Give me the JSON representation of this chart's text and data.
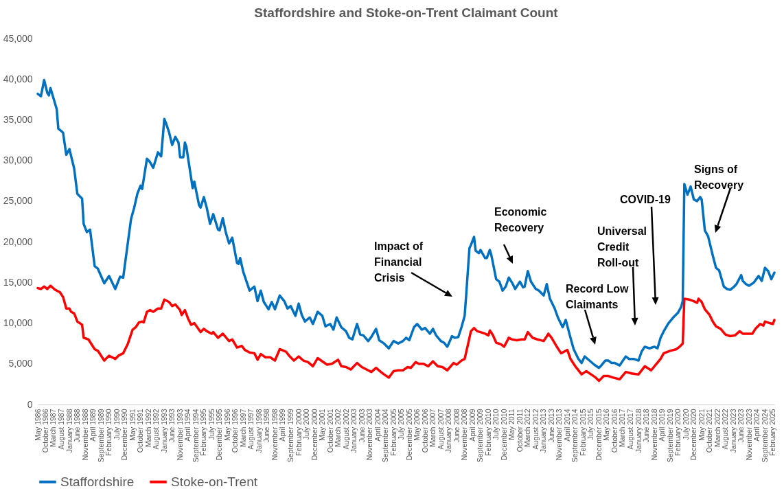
{
  "chart_data": {
    "type": "line",
    "title": "Staffordshire and Stoke-on-Trent Claimant Count",
    "legend": "bottom",
    "ylim": [
      0,
      45000
    ],
    "yticks": [
      0,
      {
        "value": 5000,
        "label": "5,000"
      },
      {
        "value": 10000,
        "label": "10,000"
      },
      {
        "value": 15000,
        "label": "15,000"
      },
      {
        "value": 20000,
        "label": "20,000"
      },
      {
        "value": 25000,
        "label": "25,000"
      },
      {
        "value": 30000,
        "label": "30,000"
      },
      {
        "value": 35000,
        "label": "35,000"
      },
      {
        "value": 40000,
        "label": "40,000"
      },
      {
        "value": 45000,
        "label": "45,000"
      }
    ],
    "xlim": [
      "1986-05",
      "2025-03"
    ],
    "xticks": [
      {
        "value": "1986-05",
        "label": "May 1986"
      },
      {
        "value": "1986-10",
        "label": "October 1986"
      },
      {
        "value": "1987-03",
        "label": "March 1987"
      },
      {
        "value": "1987-08",
        "label": "August 1987"
      },
      {
        "value": "1988-01",
        "label": "January 1988"
      },
      {
        "value": "1988-06",
        "label": "June 1988"
      },
      {
        "value": "1988-11",
        "label": "November 1988"
      },
      {
        "value": "1989-04",
        "label": "April 1989"
      },
      {
        "value": "1989-09",
        "label": "September 1989"
      },
      {
        "value": "1990-02",
        "label": "February 1990"
      },
      {
        "value": "1990-07",
        "label": "July 1990"
      },
      {
        "value": "1990-12",
        "label": "December 1990"
      },
      {
        "value": "1991-05",
        "label": "May 1991"
      },
      {
        "value": "1991-10",
        "label": "October 1991"
      },
      {
        "value": "1992-03",
        "label": "March 1992"
      },
      {
        "value": "1992-08",
        "label": "August 1992"
      },
      {
        "value": "1993-01",
        "label": "January 1993"
      },
      {
        "value": "1993-06",
        "label": "June 1993"
      },
      {
        "value": "1993-11",
        "label": "November 1993"
      },
      {
        "value": "1994-04",
        "label": "April 1994"
      },
      {
        "value": "1994-09",
        "label": "September 1994"
      },
      {
        "value": "1995-02",
        "label": "February 1995"
      },
      {
        "value": "1995-07",
        "label": "July 1995"
      },
      {
        "value": "1995-12",
        "label": "December 1995"
      },
      {
        "value": "1996-05",
        "label": "May 1996"
      },
      {
        "value": "1996-10",
        "label": "October 1996"
      },
      {
        "value": "1997-03",
        "label": "March 1997"
      },
      {
        "value": "1997-08",
        "label": "August 1997"
      },
      {
        "value": "1998-01",
        "label": "January 1998"
      },
      {
        "value": "1998-06",
        "label": "June 1998"
      },
      {
        "value": "1998-11",
        "label": "November 1998"
      },
      {
        "value": "1999-04",
        "label": "April 1999"
      },
      {
        "value": "1999-09",
        "label": "September 1999"
      },
      {
        "value": "2000-02",
        "label": "February 2000"
      },
      {
        "value": "2000-07",
        "label": "July 2000"
      },
      {
        "value": "2000-12",
        "label": "December 2000"
      },
      {
        "value": "2001-05",
        "label": "May 2001"
      },
      {
        "value": "2001-10",
        "label": "October 2001"
      },
      {
        "value": "2002-03",
        "label": "March 2002"
      },
      {
        "value": "2002-08",
        "label": "August 2002"
      },
      {
        "value": "2003-01",
        "label": "January 2003"
      },
      {
        "value": "2003-06",
        "label": "June 2003"
      },
      {
        "value": "2003-11",
        "label": "November 2003"
      },
      {
        "value": "2004-04",
        "label": "April 2004"
      },
      {
        "value": "2004-09",
        "label": "September 2004"
      },
      {
        "value": "2005-02",
        "label": "February 2005"
      },
      {
        "value": "2005-07",
        "label": "July 2005"
      },
      {
        "value": "2005-12",
        "label": "December 2005"
      },
      {
        "value": "2006-05",
        "label": "May 2006"
      },
      {
        "value": "2006-10",
        "label": "October 2006"
      },
      {
        "value": "2007-03",
        "label": "March 2007"
      },
      {
        "value": "2007-08",
        "label": "August 2007"
      },
      {
        "value": "2008-01",
        "label": "January 2008"
      },
      {
        "value": "2008-06",
        "label": "June 2008"
      },
      {
        "value": "2008-11",
        "label": "November 2008"
      },
      {
        "value": "2009-04",
        "label": "April 2009"
      },
      {
        "value": "2009-09",
        "label": "September 2009"
      },
      {
        "value": "2010-02",
        "label": "February 2010"
      },
      {
        "value": "2010-07",
        "label": "July 2010"
      },
      {
        "value": "2010-12",
        "label": "December 2010"
      },
      {
        "value": "2011-05",
        "label": "May 2011"
      },
      {
        "value": "2011-10",
        "label": "October 2011"
      },
      {
        "value": "2012-03",
        "label": "March 2012"
      },
      {
        "value": "2012-08",
        "label": "August 2012"
      },
      {
        "value": "2013-01",
        "label": "January 2013"
      },
      {
        "value": "2013-06",
        "label": "June 2013"
      },
      {
        "value": "2013-11",
        "label": "November 2013"
      },
      {
        "value": "2014-04",
        "label": "April 2014"
      },
      {
        "value": "2014-09",
        "label": "September 2014"
      },
      {
        "value": "2015-02",
        "label": "February 2015"
      },
      {
        "value": "2015-07",
        "label": "July 2015"
      },
      {
        "value": "2015-12",
        "label": "December 2015"
      },
      {
        "value": "2016-05",
        "label": "May 2016"
      },
      {
        "value": "2016-10",
        "label": "October 2016"
      },
      {
        "value": "2017-03",
        "label": "March 2017"
      },
      {
        "value": "2017-08",
        "label": "August 2017"
      },
      {
        "value": "2018-01",
        "label": "January 2018"
      },
      {
        "value": "2018-06",
        "label": "June 2018"
      },
      {
        "value": "2018-11",
        "label": "November 2018"
      },
      {
        "value": "2019-04",
        "label": "April 2019"
      },
      {
        "value": "2019-09",
        "label": "September 2019"
      },
      {
        "value": "2020-02",
        "label": "February 2020"
      },
      {
        "value": "2020-07",
        "label": "July 2020"
      },
      {
        "value": "2020-12",
        "label": "December 2020"
      },
      {
        "value": "2021-05",
        "label": "May 2021"
      },
      {
        "value": "2021-10",
        "label": "October 2021"
      },
      {
        "value": "2022-03",
        "label": "March 2022"
      },
      {
        "value": "2022-08",
        "label": "August 2022"
      },
      {
        "value": "2023-01",
        "label": "January 2023"
      },
      {
        "value": "2023-06",
        "label": "June 2023"
      },
      {
        "value": "2023-11",
        "label": "November 2023"
      },
      {
        "value": "2024-04",
        "label": "April 2024"
      },
      {
        "value": "2024-09",
        "label": "September 2024"
      },
      {
        "value": "2025-02",
        "label": "February 2025"
      }
    ],
    "annotations": [
      "Impact of\nFinancial\nCrisis",
      "Economic\nRecovery",
      "Record Low\nClaimants",
      "Universal\nCredit\nRoll-out",
      "COVID-19",
      "Signs of\nRecovery"
    ],
    "series": [
      {
        "name": "Staffordshire",
        "color": "#0070c0",
        "x": [
          "1986-05",
          "1986-07",
          "1986-09",
          "1986-11",
          "1986-12",
          "1987-01",
          "1987-05",
          "1987-06",
          "1987-08",
          "1987-09",
          "1987-11",
          "1988-01",
          "1988-04",
          "1988-06",
          "1988-09",
          "1988-10",
          "1988-12",
          "1989-02",
          "1989-05",
          "1989-07",
          "1989-11",
          "1990-02",
          "1990-06",
          "1990-09",
          "1990-11",
          "1991-02",
          "1991-04",
          "1991-06",
          "1991-08",
          "1991-10",
          "1991-11",
          "1991-12",
          "1992-02",
          "1992-04",
          "1992-06",
          "1992-09",
          "1992-11",
          "1993-01",
          "1993-02",
          "1993-04",
          "1993-06",
          "1993-08",
          "1993-10",
          "1993-11",
          "1994-01",
          "1994-02",
          "1994-03",
          "1994-07",
          "1994-08",
          "1994-11",
          "1994-12",
          "1995-02",
          "1995-04",
          "1995-06",
          "1995-08",
          "1995-11",
          "1995-12",
          "1996-02",
          "1996-04",
          "1996-06",
          "1996-08",
          "1996-11",
          "1996-12",
          "1997-01",
          "1997-03",
          "1997-07",
          "1997-10",
          "1997-12",
          "1998-02",
          "1998-04",
          "1998-07",
          "1998-09",
          "1998-11",
          "1999-02",
          "1999-05",
          "1999-07",
          "1999-09",
          "1999-12",
          "2000-02",
          "2000-04",
          "2000-06",
          "2000-09",
          "2000-11",
          "2001-02",
          "2001-05",
          "2001-07",
          "2001-10",
          "2001-12",
          "2002-02",
          "2002-05",
          "2002-08",
          "2002-10",
          "2002-12",
          "2003-03",
          "2003-05",
          "2003-07",
          "2003-10",
          "2003-12",
          "2004-03",
          "2004-05",
          "2004-08",
          "2004-11",
          "2005-02",
          "2005-05",
          "2005-08",
          "2005-10",
          "2005-12",
          "2006-03",
          "2006-05",
          "2006-08",
          "2006-10",
          "2007-01",
          "2007-03",
          "2007-05",
          "2007-08",
          "2007-10",
          "2007-12",
          "2008-01",
          "2008-03",
          "2008-05",
          "2008-07",
          "2008-09",
          "2008-11",
          "2008-12",
          "2009-02",
          "2009-03",
          "2009-05",
          "2009-06",
          "2009-08",
          "2009-09",
          "2009-12",
          "2010-01",
          "2010-03",
          "2010-04",
          "2010-07",
          "2010-09",
          "2010-11",
          "2011-01",
          "2011-03",
          "2011-05",
          "2011-07",
          "2011-10",
          "2011-12",
          "2012-01",
          "2012-03",
          "2012-05",
          "2012-08",
          "2012-10",
          "2013-01",
          "2013-03",
          "2013-05",
          "2013-08",
          "2013-10",
          "2014-01",
          "2014-03",
          "2014-06",
          "2014-08",
          "2014-11",
          "2015-01",
          "2015-03",
          "2015-06",
          "2015-09",
          "2015-12",
          "2016-01",
          "2016-04",
          "2016-06",
          "2016-08",
          "2016-10",
          "2017-01",
          "2017-05",
          "2017-07",
          "2017-10",
          "2018-01",
          "2018-03",
          "2018-05",
          "2018-08",
          "2018-11",
          "2019-01",
          "2019-03",
          "2019-05",
          "2019-08",
          "2019-11",
          "2020-02",
          "2020-04",
          "2020-05",
          "2020-06",
          "2020-08",
          "2020-10",
          "2020-12",
          "2021-02",
          "2021-04",
          "2021-05",
          "2021-07",
          "2021-09",
          "2021-12",
          "2022-02",
          "2022-04",
          "2022-07",
          "2022-09",
          "2022-11",
          "2023-01",
          "2023-03",
          "2023-06",
          "2023-07",
          "2023-09",
          "2023-11",
          "2024-02",
          "2024-05",
          "2024-07",
          "2024-09",
          "2024-11",
          "2025-01",
          "2025-03"
        ],
        "values": [
          38200,
          37900,
          39900,
          38300,
          38000,
          38900,
          36300,
          33900,
          33600,
          33400,
          30700,
          31400,
          29000,
          25900,
          25300,
          22200,
          21200,
          21500,
          17000,
          16700,
          14900,
          15800,
          14200,
          15700,
          15600,
          20000,
          22800,
          24200,
          25900,
          26900,
          26500,
          27700,
          30200,
          29800,
          29100,
          31000,
          30500,
          35100,
          34600,
          33500,
          31900,
          32900,
          32200,
          30400,
          30400,
          32200,
          31700,
          26600,
          27400,
          24500,
          24200,
          25500,
          24100,
          22200,
          23400,
          21500,
          21400,
          22900,
          21100,
          19800,
          20500,
          17400,
          17300,
          18000,
          16300,
          14000,
          14500,
          12700,
          14000,
          12600,
          11700,
          12600,
          11700,
          13400,
          12700,
          11800,
          12100,
          10900,
          12400,
          11000,
          10200,
          10700,
          9900,
          11400,
          10900,
          9600,
          9900,
          9200,
          10700,
          9500,
          9000,
          8200,
          8000,
          9900,
          8600,
          8500,
          7800,
          8300,
          9300,
          7900,
          7500,
          6900,
          7800,
          7500,
          7800,
          8200,
          7900,
          9500,
          9900,
          9200,
          9400,
          8700,
          9300,
          8500,
          7800,
          7600,
          7100,
          7500,
          8400,
          8200,
          8300,
          9500,
          10900,
          13500,
          19200,
          19600,
          20600,
          18900,
          18600,
          19000,
          18000,
          18000,
          19000,
          18300,
          15400,
          15100,
          14000,
          14500,
          15600,
          15000,
          14200,
          15100,
          14400,
          14500,
          16400,
          15100,
          14200,
          14000,
          13400,
          14800,
          13000,
          11800,
          10700,
          9500,
          10400,
          8200,
          6800,
          5600,
          5100,
          5900,
          5400,
          4900,
          4500,
          4700,
          5400,
          5400,
          5100,
          5100,
          4800,
          5900,
          5600,
          5600,
          5400,
          6500,
          7100,
          6900,
          7100,
          6900,
          8200,
          9000,
          10000,
          10700,
          11300,
          12000,
          12700,
          27100,
          25800,
          26800,
          25200,
          25000,
          25500,
          25200,
          21400,
          20700,
          18300,
          16800,
          16500,
          14500,
          14200,
          14100,
          14400,
          14800,
          15900,
          15200,
          14800,
          14600,
          15000,
          15800,
          15200,
          16800,
          16400,
          15400,
          16200
        ]
      },
      {
        "name": "Stoke-on-Trent",
        "color": "#ff0000",
        "x": [
          "1986-05",
          "1986-07",
          "1986-09",
          "1986-11",
          "1987-01",
          "1987-04",
          "1987-07",
          "1987-09",
          "1987-11",
          "1988-01",
          "1988-02",
          "1988-04",
          "1988-06",
          "1988-09",
          "1988-10",
          "1989-01",
          "1989-05",
          "1989-07",
          "1989-11",
          "1990-02",
          "1990-06",
          "1990-08",
          "1990-11",
          "1991-02",
          "1991-05",
          "1991-07",
          "1991-09",
          "1991-11",
          "1991-12",
          "1992-02",
          "1992-04",
          "1992-06",
          "1992-09",
          "1992-11",
          "1993-01",
          "1993-04",
          "1993-06",
          "1993-08",
          "1993-11",
          "1993-12",
          "1994-02",
          "1994-04",
          "1994-06",
          "1994-08",
          "1994-12",
          "1995-02",
          "1995-04",
          "1995-07",
          "1995-08",
          "1995-11",
          "1996-02",
          "1996-06",
          "1996-08",
          "1996-11",
          "1997-02",
          "1997-04",
          "1997-07",
          "1997-10",
          "1997-12",
          "1998-02",
          "1998-05",
          "1998-08",
          "1998-11",
          "1999-02",
          "1999-06",
          "1999-08",
          "1999-11",
          "2000-02",
          "2000-05",
          "2000-08",
          "2000-11",
          "2001-02",
          "2001-05",
          "2001-08",
          "2001-11",
          "2002-03",
          "2002-05",
          "2002-08",
          "2002-11",
          "2003-03",
          "2003-06",
          "2003-10",
          "2003-12",
          "2004-03",
          "2004-06",
          "2004-08",
          "2004-11",
          "2005-02",
          "2005-05",
          "2005-08",
          "2005-11",
          "2006-01",
          "2006-04",
          "2006-06",
          "2006-09",
          "2006-12",
          "2007-03",
          "2007-06",
          "2007-09",
          "2007-12",
          "2008-04",
          "2008-06",
          "2008-09",
          "2008-11",
          "2009-01",
          "2009-03",
          "2009-05",
          "2009-07",
          "2009-09",
          "2009-12",
          "2010-02",
          "2010-03",
          "2010-05",
          "2010-07",
          "2010-10",
          "2010-12",
          "2011-03",
          "2011-05",
          "2011-08",
          "2011-11",
          "2012-01",
          "2012-03",
          "2012-06",
          "2012-09",
          "2012-11",
          "2013-01",
          "2013-04",
          "2013-06",
          "2013-09",
          "2013-12",
          "2014-02",
          "2014-04",
          "2014-06",
          "2014-09",
          "2015-01",
          "2015-04",
          "2015-07",
          "2015-10",
          "2015-12",
          "2016-03",
          "2016-06",
          "2016-09",
          "2017-01",
          "2017-05",
          "2017-09",
          "2018-01",
          "2018-05",
          "2018-09",
          "2018-12",
          "2019-03",
          "2019-05",
          "2019-09",
          "2020-01",
          "2020-03",
          "2020-05",
          "2020-06",
          "2020-09",
          "2020-12",
          "2021-02",
          "2021-03",
          "2021-05",
          "2021-07",
          "2021-10",
          "2021-12",
          "2022-02",
          "2022-05",
          "2022-08",
          "2022-11",
          "2023-02",
          "2023-05",
          "2023-07",
          "2023-10",
          "2024-01",
          "2024-03",
          "2024-06",
          "2024-08",
          "2024-09",
          "2024-12",
          "2025-02",
          "2025-03"
        ],
        "values": [
          14300,
          14200,
          14500,
          14200,
          14600,
          14100,
          13800,
          13200,
          11800,
          11800,
          11400,
          11200,
          10200,
          9800,
          8200,
          8000,
          6800,
          6600,
          5400,
          6000,
          5600,
          6000,
          6300,
          7500,
          9200,
          9500,
          10100,
          10200,
          10100,
          11400,
          11600,
          11400,
          11800,
          11800,
          12900,
          12600,
          12100,
          12300,
          11600,
          11000,
          11600,
          10600,
          9800,
          10000,
          8900,
          9300,
          9000,
          8700,
          8900,
          8200,
          8700,
          7800,
          8000,
          7000,
          7200,
          6700,
          6400,
          6300,
          5500,
          6200,
          5800,
          5800,
          5400,
          6800,
          6500,
          6000,
          5400,
          5900,
          5400,
          5200,
          4700,
          5700,
          5300,
          4900,
          5000,
          5500,
          4700,
          4600,
          4300,
          5100,
          4600,
          4200,
          4000,
          4500,
          4000,
          3700,
          3300,
          4100,
          4200,
          4200,
          4600,
          4500,
          5200,
          5000,
          5000,
          4700,
          5300,
          4700,
          4600,
          4200,
          5100,
          4900,
          5400,
          5600,
          7300,
          9000,
          9400,
          9000,
          8900,
          8700,
          8500,
          9100,
          8500,
          7600,
          7400,
          7100,
          8200,
          8000,
          7900,
          8000,
          8000,
          8900,
          8200,
          8000,
          7900,
          7800,
          8700,
          8200,
          7200,
          6300,
          6500,
          6700,
          5600,
          4700,
          3700,
          4100,
          3700,
          3300,
          2900,
          3500,
          3500,
          3300,
          3100,
          4000,
          3800,
          3700,
          4700,
          4200,
          4900,
          5600,
          6300,
          6600,
          6800,
          7100,
          7500,
          13000,
          12900,
          12700,
          12500,
          13000,
          12600,
          11700,
          11000,
          10200,
          9600,
          9300,
          8600,
          8400,
          8500,
          9000,
          8700,
          8700,
          8700,
          9300,
          9900,
          9700,
          10200,
          10000,
          9900,
          10400
        ]
      }
    ]
  }
}
